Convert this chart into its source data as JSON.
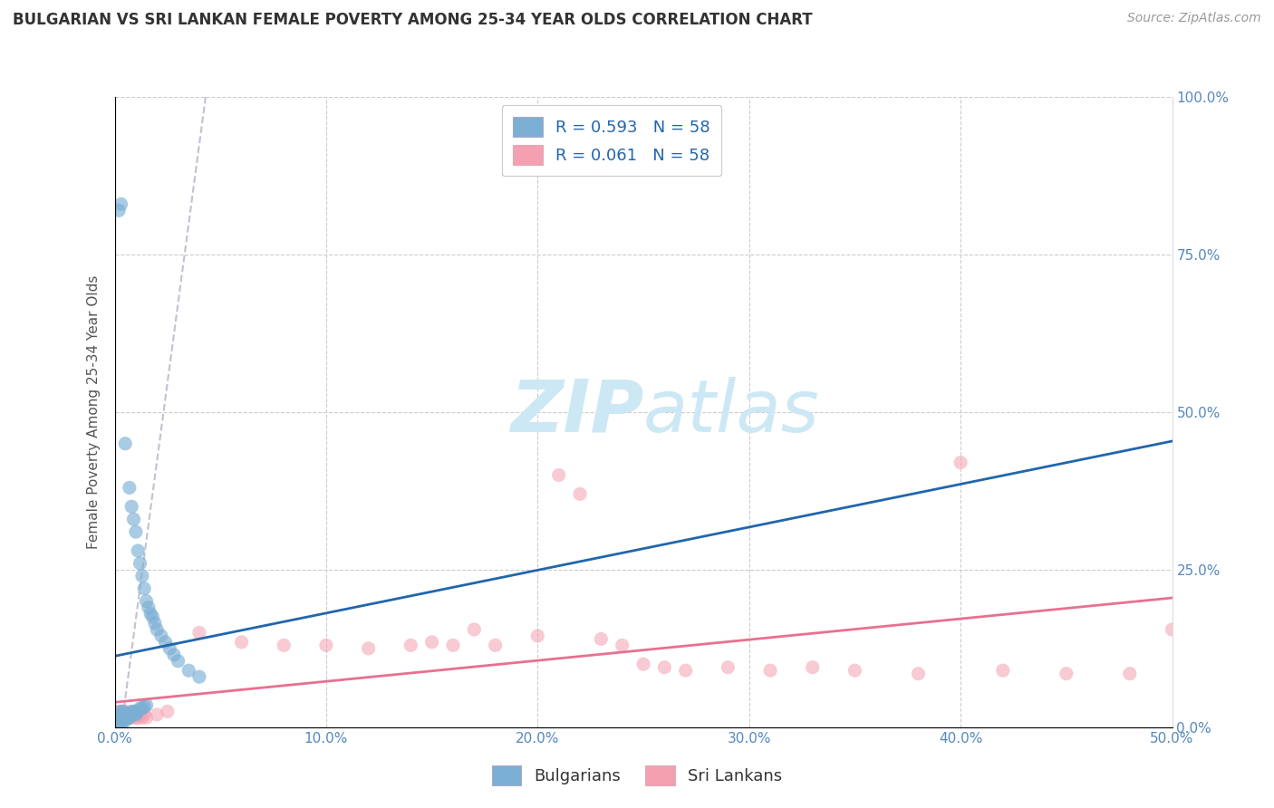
{
  "title": "BULGARIAN VS SRI LANKAN FEMALE POVERTY AMONG 25-34 YEAR OLDS CORRELATION CHART",
  "source": "Source: ZipAtlas.com",
  "ylabel": "Female Poverty Among 25-34 Year Olds",
  "xlim": [
    0.0,
    0.5
  ],
  "ylim": [
    0.0,
    1.0
  ],
  "xticks": [
    0.0,
    0.1,
    0.2,
    0.3,
    0.4,
    0.5
  ],
  "xticklabels": [
    "0.0%",
    "10.0%",
    "20.0%",
    "30.0%",
    "40.0%",
    "50.0%"
  ],
  "yticks": [
    0.0,
    0.25,
    0.5,
    0.75,
    1.0
  ],
  "yticklabels_right": [
    "0.0%",
    "25.0%",
    "50.0%",
    "75.0%",
    "100.0%"
  ],
  "bulgarian_color": "#7BAFD4",
  "sri_lankan_color": "#F4A0B0",
  "bulgarian_line_color": "#2166ac",
  "sri_lankan_line_color": "#E87090",
  "dash_line_color": "#BBBBCC",
  "bg_color": "#ffffff",
  "grid_color": "#cccccc",
  "watermark_color": "#CDE8F5",
  "title_color": "#333333",
  "axis_label_color": "#555555",
  "tick_color": "#5588bb",
  "bulgarians_label": "Bulgarians",
  "sri_lankans_label": "Sri Lankans",
  "legend_label_color": "#2166ac",
  "bx": [
    0.001,
    0.001,
    0.001,
    0.002,
    0.002,
    0.002,
    0.002,
    0.003,
    0.003,
    0.003,
    0.003,
    0.003,
    0.004,
    0.004,
    0.004,
    0.004,
    0.005,
    0.005,
    0.005,
    0.006,
    0.006,
    0.007,
    0.007,
    0.008,
    0.008,
    0.009,
    0.009,
    0.01,
    0.01,
    0.011,
    0.012,
    0.013,
    0.014,
    0.015,
    0.002,
    0.003,
    0.005,
    0.007,
    0.008,
    0.009,
    0.01,
    0.011,
    0.012,
    0.013,
    0.014,
    0.015,
    0.016,
    0.017,
    0.018,
    0.019,
    0.02,
    0.022,
    0.024,
    0.026,
    0.028,
    0.03,
    0.035,
    0.04
  ],
  "by": [
    0.005,
    0.01,
    0.015,
    0.005,
    0.01,
    0.015,
    0.02,
    0.005,
    0.01,
    0.015,
    0.02,
    0.025,
    0.01,
    0.015,
    0.02,
    0.025,
    0.01,
    0.015,
    0.02,
    0.015,
    0.02,
    0.015,
    0.02,
    0.02,
    0.025,
    0.02,
    0.025,
    0.02,
    0.025,
    0.025,
    0.03,
    0.03,
    0.032,
    0.035,
    0.82,
    0.83,
    0.45,
    0.38,
    0.35,
    0.33,
    0.31,
    0.28,
    0.26,
    0.24,
    0.22,
    0.2,
    0.19,
    0.18,
    0.175,
    0.165,
    0.155,
    0.145,
    0.135,
    0.125,
    0.115,
    0.105,
    0.09,
    0.08
  ],
  "sx": [
    0.001,
    0.001,
    0.002,
    0.002,
    0.002,
    0.003,
    0.003,
    0.003,
    0.004,
    0.004,
    0.004,
    0.005,
    0.005,
    0.005,
    0.006,
    0.006,
    0.007,
    0.007,
    0.008,
    0.008,
    0.009,
    0.01,
    0.01,
    0.011,
    0.012,
    0.013,
    0.014,
    0.015,
    0.02,
    0.025,
    0.04,
    0.06,
    0.08,
    0.1,
    0.12,
    0.14,
    0.15,
    0.16,
    0.17,
    0.18,
    0.2,
    0.21,
    0.22,
    0.23,
    0.24,
    0.25,
    0.26,
    0.27,
    0.29,
    0.31,
    0.33,
    0.35,
    0.38,
    0.4,
    0.42,
    0.45,
    0.48,
    0.5
  ],
  "sy": [
    0.02,
    0.025,
    0.015,
    0.02,
    0.025,
    0.015,
    0.02,
    0.025,
    0.015,
    0.02,
    0.025,
    0.015,
    0.02,
    0.025,
    0.015,
    0.02,
    0.015,
    0.02,
    0.015,
    0.02,
    0.02,
    0.015,
    0.02,
    0.015,
    0.02,
    0.015,
    0.02,
    0.015,
    0.02,
    0.025,
    0.15,
    0.135,
    0.13,
    0.13,
    0.125,
    0.13,
    0.135,
    0.13,
    0.155,
    0.13,
    0.145,
    0.4,
    0.37,
    0.14,
    0.13,
    0.1,
    0.095,
    0.09,
    0.095,
    0.09,
    0.095,
    0.09,
    0.085,
    0.42,
    0.09,
    0.085,
    0.085,
    0.155
  ]
}
